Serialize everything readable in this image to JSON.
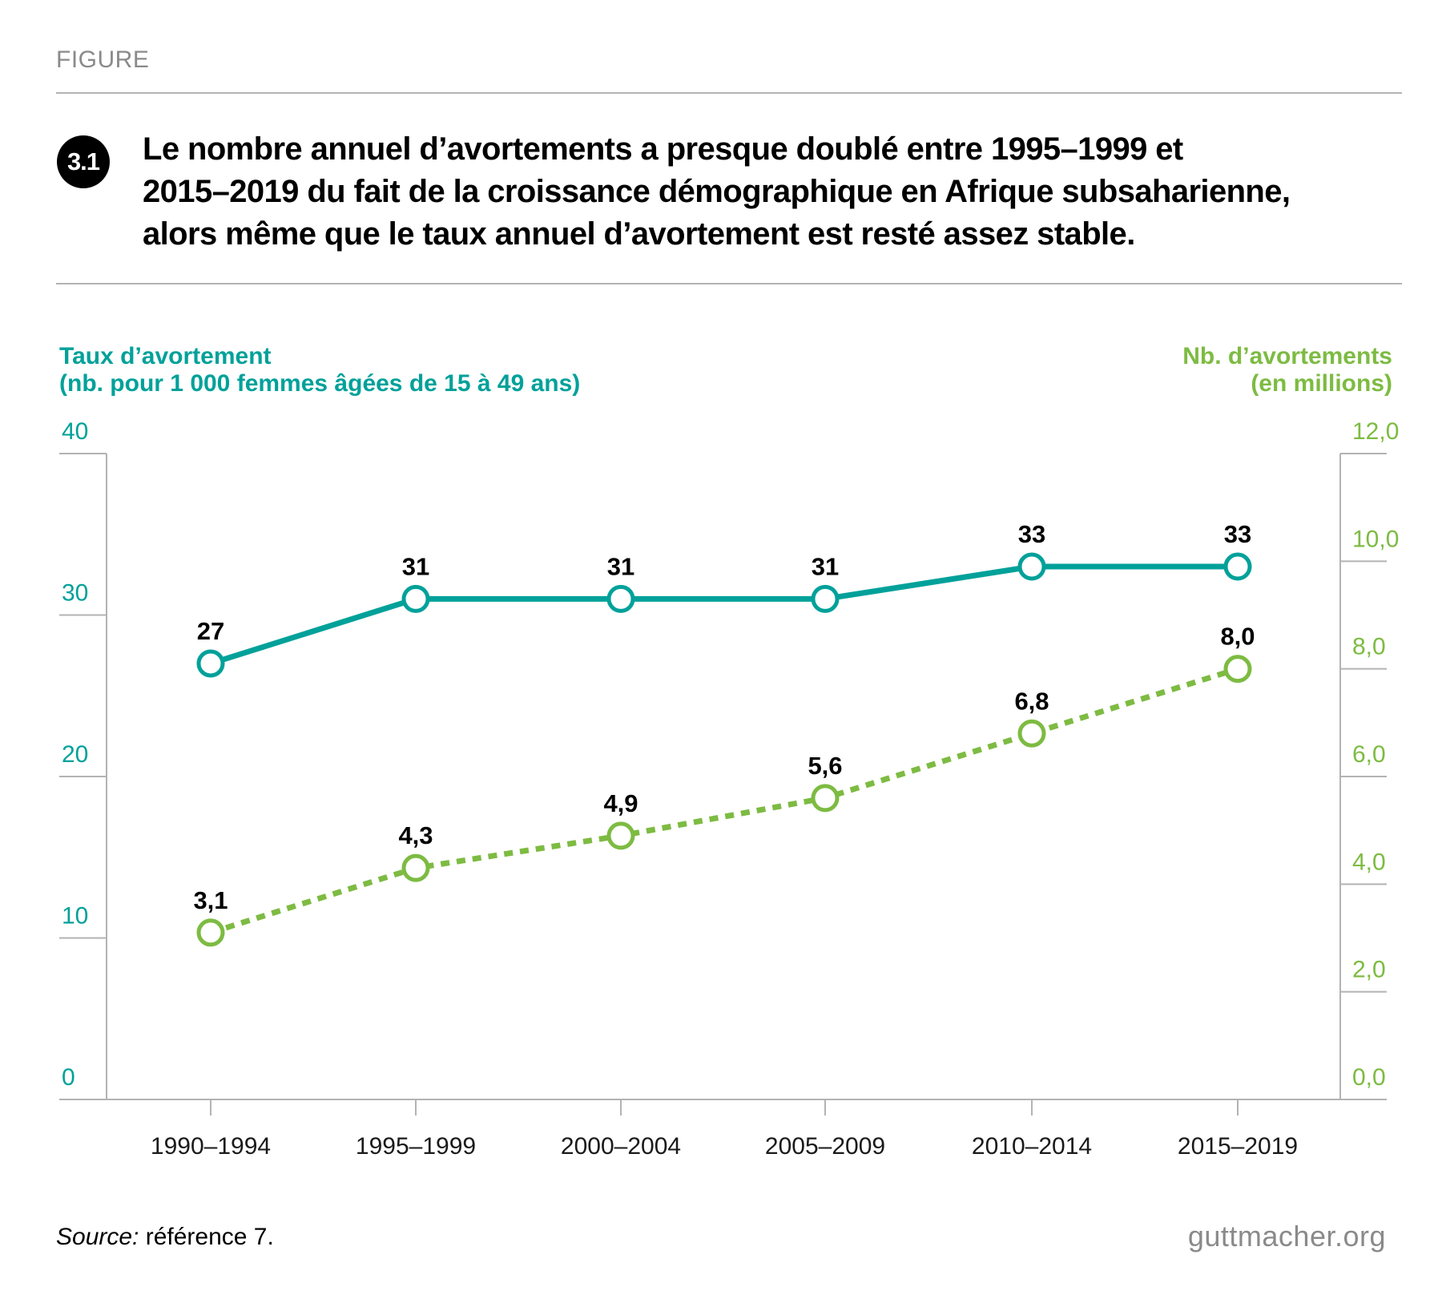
{
  "header": {
    "figure_label": "FIGURE",
    "figure_number": "3.1",
    "title_lines": [
      "Le nombre annuel d’avortements a presque doublé entre 1995–1999 et",
      "2015–2019 du fait de la croissance démographique en Afrique subsaharienne,",
      "alors même que le taux annuel d’avortement est resté assez stable."
    ]
  },
  "axes": {
    "left_title_lines": [
      "Taux d’avortement",
      "(nb. pour 1 000 femmes âgées de 15 à 49 ans)"
    ],
    "right_title_lines": [
      "Nb. d’avortements",
      "(en millions)"
    ]
  },
  "colors": {
    "rate": "#00a19a",
    "count": "#7dbb42",
    "axis": "#b3b3b3",
    "text": "#000000"
  },
  "chart_data": {
    "type": "line",
    "categories": [
      "1990–1994",
      "1995–1999",
      "2000–2004",
      "2005–2009",
      "2010–2014",
      "2015–2019"
    ],
    "left_axis": {
      "min": 0,
      "max": 40,
      "ticks": [
        "0",
        "10",
        "20",
        "30",
        "40"
      ]
    },
    "right_axis": {
      "min": 0,
      "max": 12,
      "ticks": [
        "0,0",
        "2,0",
        "4,0",
        "6,0",
        "8,0",
        "10,0",
        "12,0"
      ]
    },
    "series": [
      {
        "axis": "left",
        "style": "solid",
        "values": [
          27,
          31,
          31,
          31,
          33,
          33
        ],
        "labels": [
          "27",
          "31",
          "31",
          "31",
          "33",
          "33"
        ]
      },
      {
        "axis": "right",
        "style": "dotted",
        "values": [
          3.1,
          4.3,
          4.9,
          5.6,
          6.8,
          8.0
        ],
        "labels": [
          "3,1",
          "4,3",
          "4,9",
          "5,6",
          "6,8",
          "8,0"
        ]
      }
    ],
    "grid": false
  },
  "footer": {
    "source_label": "Source:",
    "source_text": " référence 7.",
    "brand": "guttmacher.org"
  }
}
